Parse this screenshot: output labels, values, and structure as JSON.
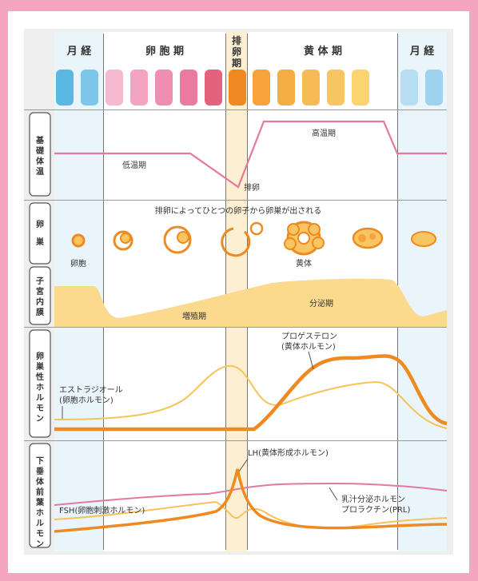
{
  "phases": {
    "menstruation_start": "月 経",
    "follicular": "卵 胞 期",
    "ovulation_vertical": [
      "排",
      "卵",
      "期"
    ],
    "luteal": "黄 体 期",
    "menstruation_end": "月 経"
  },
  "rows": {
    "bbt": [
      "基",
      "礎",
      "体",
      "温"
    ],
    "ovary": [
      "卵",
      "巣"
    ],
    "endometrium": [
      "子",
      "宮",
      "内",
      "膜"
    ],
    "ovarian_hormones": [
      "卵",
      "巣",
      "性",
      "ホ",
      "ル",
      "モ",
      "ン"
    ],
    "pituitary_hormones": [
      "下",
      "垂",
      "体",
      "前",
      "葉",
      "ホ",
      "ル",
      "モ",
      "ン"
    ]
  },
  "labels": {
    "low_temp": "低温期",
    "high_temp": "高温期",
    "ovulation": "排卵",
    "ovary_note": "排卵によってひとつの卵子から卵巣が出される",
    "follicle": "卵胞",
    "corpus_luteum": "黄体",
    "proliferative": "増殖期",
    "secretory": "分泌期",
    "estradiol": "エストラジオール",
    "estradiol_sub": "(卵胞ホルモン)",
    "progesterone": "プロゲステロン",
    "progesterone_sub": "(黄体ホルモン)",
    "lh": "LH(黄体形成ホルモン)",
    "fsh": "FSH(卵胞刺激ホルモン)",
    "prl": "乳汁分泌ホルモン",
    "prl_sub": "プロラクチン(PRL)"
  },
  "colors": {
    "frame_pink": "#f4a6c0",
    "curve_pink": "#e27a9c",
    "orange": "#ef8a22",
    "yellow": "#f7c25a",
    "light_yellow": "#fbd98d",
    "ovulation_band": "#fdf0d2",
    "pill_colors": [
      "#5ab8e2",
      "#7cc6ea",
      "#f7b9d0",
      "#f4a3c1",
      "#ef8eb1",
      "#ea7aa0",
      "#e5627f",
      "#ef8a22",
      "#f5a33a",
      "#f5ae45",
      "#f7ba55",
      "#f8c562",
      "#fbd36f",
      "#b6ddf2",
      "#9fd2ee"
    ]
  }
}
